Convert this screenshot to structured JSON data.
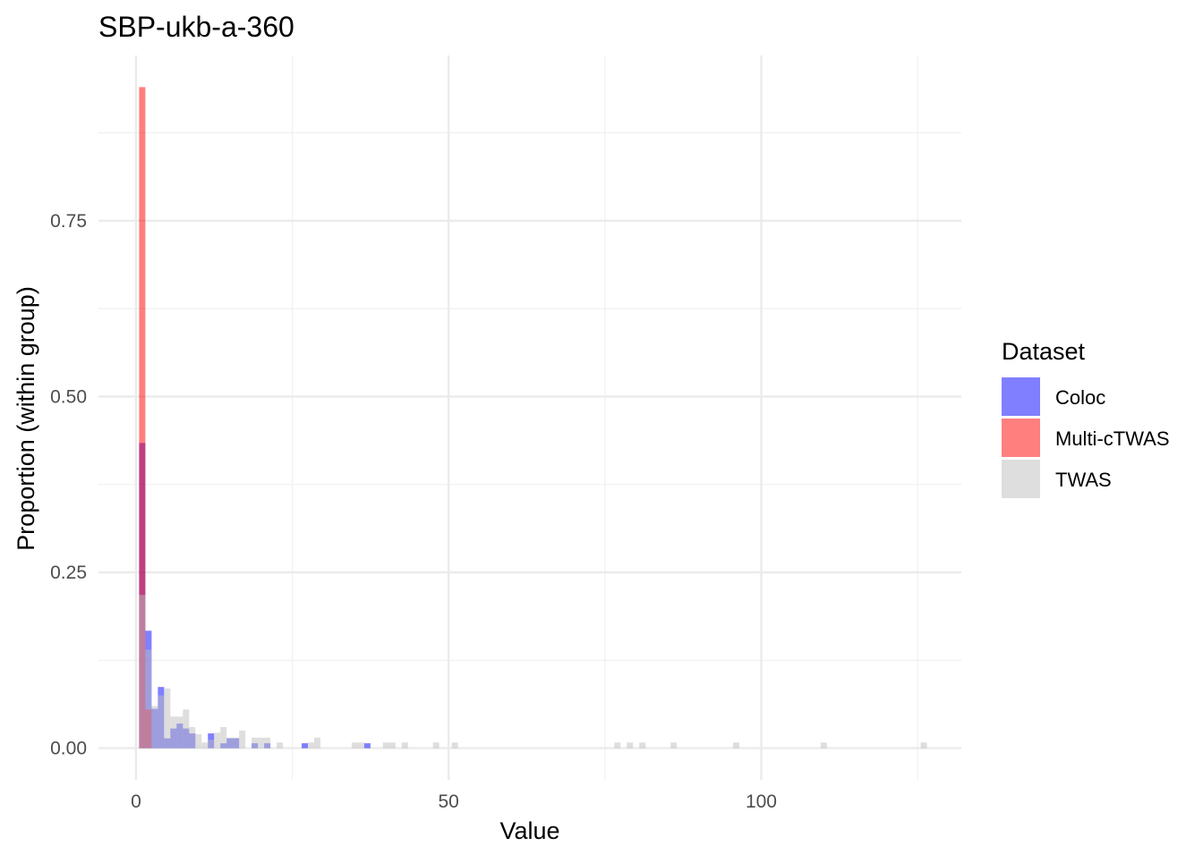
{
  "chart_data": {
    "type": "bar",
    "title": "SBP-ukb-a-360",
    "xlabel": "Value",
    "ylabel": "Proportion (within group)",
    "xlim": [
      -6,
      132
    ],
    "ylim": [
      -0.045,
      0.985
    ],
    "x_ticks": [
      0,
      50,
      100
    ],
    "x_minor_ticks": [
      25,
      75,
      125
    ],
    "y_ticks": [
      0,
      0.25,
      0.5,
      0.75
    ],
    "y_tick_labels": [
      "0.00",
      "0.25",
      "0.50",
      "0.75"
    ],
    "y_minor_ticks": [
      0.125,
      0.375,
      0.625,
      0.875
    ],
    "grid": true,
    "bin_width": 1,
    "legend": {
      "title": "Dataset",
      "position": "right"
    },
    "series": [
      {
        "name": "Coloc",
        "color": "#0000FF",
        "bins": [
          [
            1,
            0.434
          ],
          [
            2,
            0.167
          ],
          [
            3,
            0.056
          ],
          [
            4,
            0.087
          ],
          [
            5,
            0.014
          ],
          [
            6,
            0.028
          ],
          [
            7,
            0.035
          ],
          [
            8,
            0.028
          ],
          [
            9,
            0.021
          ],
          [
            12,
            0.021
          ],
          [
            14,
            0.007
          ],
          [
            15,
            0.014
          ],
          [
            16,
            0.014
          ],
          [
            19,
            0.007
          ],
          [
            21,
            0.007
          ],
          [
            27,
            0.007
          ],
          [
            37,
            0.007
          ]
        ]
      },
      {
        "name": "Multi-cTWAS",
        "color": "#FF0000",
        "bins": [
          [
            1,
            0.94
          ],
          [
            2,
            0.055
          ]
        ]
      },
      {
        "name": "TWAS",
        "color": "#BEBEBE",
        "bins": [
          [
            1,
            0.218
          ],
          [
            2,
            0.14
          ],
          [
            3,
            0.06
          ],
          [
            4,
            0.075
          ],
          [
            5,
            0.085
          ],
          [
            6,
            0.045
          ],
          [
            7,
            0.045
          ],
          [
            8,
            0.055
          ],
          [
            9,
            0.03
          ],
          [
            10,
            0.02
          ],
          [
            11,
            0.008
          ],
          [
            12,
            0.012
          ],
          [
            13,
            0.022
          ],
          [
            14,
            0.03
          ],
          [
            15,
            0.015
          ],
          [
            16,
            0.015
          ],
          [
            17,
            0.025
          ],
          [
            19,
            0.015
          ],
          [
            20,
            0.015
          ],
          [
            21,
            0.015
          ],
          [
            23,
            0.008
          ],
          [
            28,
            0.008
          ],
          [
            29,
            0.015
          ],
          [
            35,
            0.008
          ],
          [
            36,
            0.008
          ],
          [
            40,
            0.008
          ],
          [
            41,
            0.008
          ],
          [
            43,
            0.008
          ],
          [
            48,
            0.008
          ],
          [
            51,
            0.008
          ],
          [
            77,
            0.008
          ],
          [
            79,
            0.008
          ],
          [
            81,
            0.008
          ],
          [
            86,
            0.008
          ],
          [
            96,
            0.008
          ],
          [
            110,
            0.008
          ],
          [
            126,
            0.008
          ]
        ]
      }
    ]
  }
}
